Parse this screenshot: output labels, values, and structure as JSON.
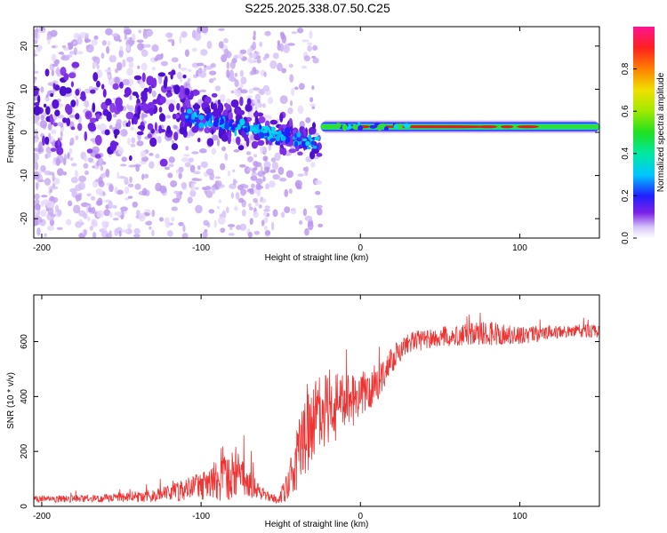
{
  "title": "S225.2025.338.07.50.C25",
  "colors": {
    "snr_line": "#ee3333",
    "noise_purple": "#6a1ee0",
    "noise_light": "#c9a8f3",
    "signal_red": "#e31a1c",
    "signal_green": "#30e030"
  },
  "chart_data": [
    {
      "type": "heatmap",
      "name": "spectrogram",
      "xlabel": "Height of straight line (km)",
      "ylabel": "Frequency (Hz)",
      "xlim": [
        -205,
        150
      ],
      "ylim": [
        -24.5,
        24.5
      ],
      "xticks": [
        -200,
        -100,
        0,
        100
      ],
      "yticks": [
        -20,
        -10,
        0,
        10,
        20
      ],
      "xtick_labels": [
        "-200",
        "-100",
        "0",
        "100"
      ],
      "ytick_labels": [
        "-20",
        "-10",
        "0",
        "10",
        "20"
      ],
      "colorbar": {
        "label": "Normalized spectral amplitude",
        "range": [
          0,
          1
        ],
        "ticks": [
          0.0,
          0.2,
          0.4,
          0.6,
          0.8
        ],
        "tick_labels": [
          "0.0",
          "0.2",
          "0.4",
          "0.6",
          "0.8"
        ]
      },
      "features": [
        {
          "name": "noise-cloud",
          "x_range": [
            -205,
            -25
          ],
          "freq_range": [
            -24,
            24
          ],
          "amplitude": [
            0.0,
            0.2
          ]
        },
        {
          "name": "coherent-onset",
          "x_range": [
            -110,
            -25
          ],
          "freq_center": [
            5,
            -3
          ],
          "amplitude": [
            0.2,
            0.35
          ]
        },
        {
          "name": "signal-band",
          "x_range": [
            -25,
            150
          ],
          "freq_center": 1.3,
          "freq_halfwidth": 1.5,
          "amplitude": [
            0.5,
            1.0
          ]
        }
      ]
    },
    {
      "type": "line",
      "name": "snr",
      "xlabel": "Height of straight line (km)",
      "ylabel": "SNR (10 * v/v)",
      "xlim": [
        -205,
        150
      ],
      "ylim": [
        0,
        770
      ],
      "xticks": [
        -200,
        -100,
        0,
        100
      ],
      "yticks": [
        0,
        200,
        400,
        600
      ],
      "xtick_labels": [
        "-200",
        "-100",
        "0",
        "100"
      ],
      "ytick_labels": [
        "0",
        "200",
        "400",
        "600"
      ],
      "envelope": {
        "x": [
          -205,
          -160,
          -130,
          -110,
          -90,
          -78,
          -70,
          -60,
          -52,
          -45,
          -38,
          -30,
          -20,
          -10,
          0,
          10,
          20,
          30,
          40,
          60,
          80,
          100,
          120,
          150
        ],
        "y": [
          25,
          30,
          40,
          60,
          90,
          110,
          90,
          40,
          25,
          80,
          200,
          300,
          360,
          370,
          400,
          450,
          530,
          590,
          610,
          625,
          630,
          620,
          635,
          640
        ],
        "noise": [
          12,
          15,
          25,
          40,
          70,
          110,
          60,
          20,
          15,
          60,
          140,
          150,
          140,
          110,
          80,
          70,
          50,
          40,
          40,
          40,
          45,
          35,
          25,
          25
        ]
      }
    }
  ]
}
